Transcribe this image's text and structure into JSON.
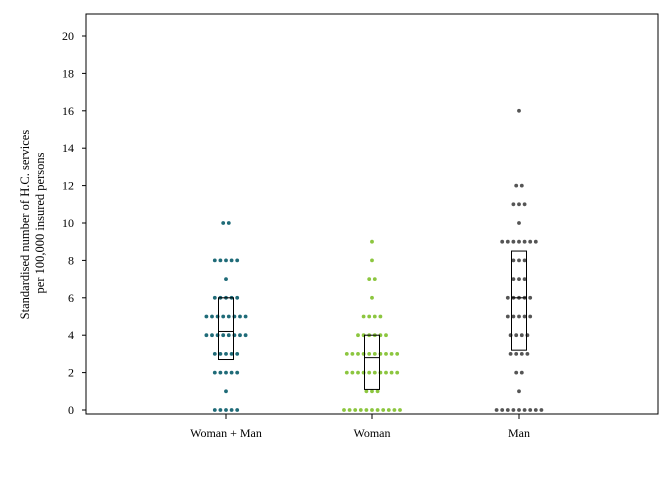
{
  "chart_data": {
    "type": "scatter",
    "subtype": "dot-strip with box plot",
    "title": "",
    "xlabel": "",
    "ylabel_lines": [
      "Standardised number of H.C. services",
      "per 100,000 insured persons"
    ],
    "ylim": [
      0,
      21
    ],
    "yticks": [
      0,
      2,
      4,
      6,
      8,
      10,
      12,
      14,
      16,
      18,
      20
    ],
    "grid": false,
    "legend": "none",
    "categories": [
      "Woman + Man",
      "Woman",
      "Man"
    ],
    "series": [
      {
        "color": "#1f6b78",
        "values": [
          0,
          0,
          0,
          0,
          0,
          1,
          2,
          2,
          2,
          2,
          2,
          3,
          3,
          3,
          3,
          3,
          4,
          4,
          4,
          4,
          4,
          4,
          4,
          4,
          5,
          5,
          5,
          5,
          5,
          5,
          5,
          5,
          6,
          6,
          6,
          6,
          6,
          7,
          8,
          8,
          8,
          8,
          8,
          10,
          10
        ],
        "box": {
          "q1": 2.7,
          "median": 4.2,
          "q3": 6.0
        }
      },
      {
        "color": "#8cc63f",
        "values": [
          0,
          0,
          0,
          0,
          0,
          0,
          0,
          0,
          0,
          0,
          0,
          1,
          1,
          1,
          2,
          2,
          2,
          2,
          2,
          2,
          2,
          2,
          2,
          2,
          3,
          3,
          3,
          3,
          3,
          3,
          3,
          3,
          3,
          3,
          4,
          4,
          4,
          4,
          4,
          4,
          5,
          5,
          5,
          5,
          6,
          7,
          7,
          8,
          9
        ],
        "box": {
          "q1": 1.1,
          "median": 2.8,
          "q3": 4.0
        }
      },
      {
        "color": "#555555",
        "values": [
          0,
          0,
          0,
          0,
          0,
          0,
          0,
          0,
          0,
          1,
          2,
          2,
          3,
          3,
          3,
          3,
          4,
          4,
          4,
          4,
          5,
          5,
          5,
          5,
          5,
          6,
          6,
          6,
          6,
          6,
          7,
          7,
          7,
          8,
          8,
          8,
          9,
          9,
          9,
          9,
          9,
          9,
          9,
          10,
          11,
          11,
          11,
          12,
          12,
          16
        ],
        "box": {
          "q1": 3.2,
          "median": 6.0,
          "q3": 8.5
        }
      }
    ]
  }
}
